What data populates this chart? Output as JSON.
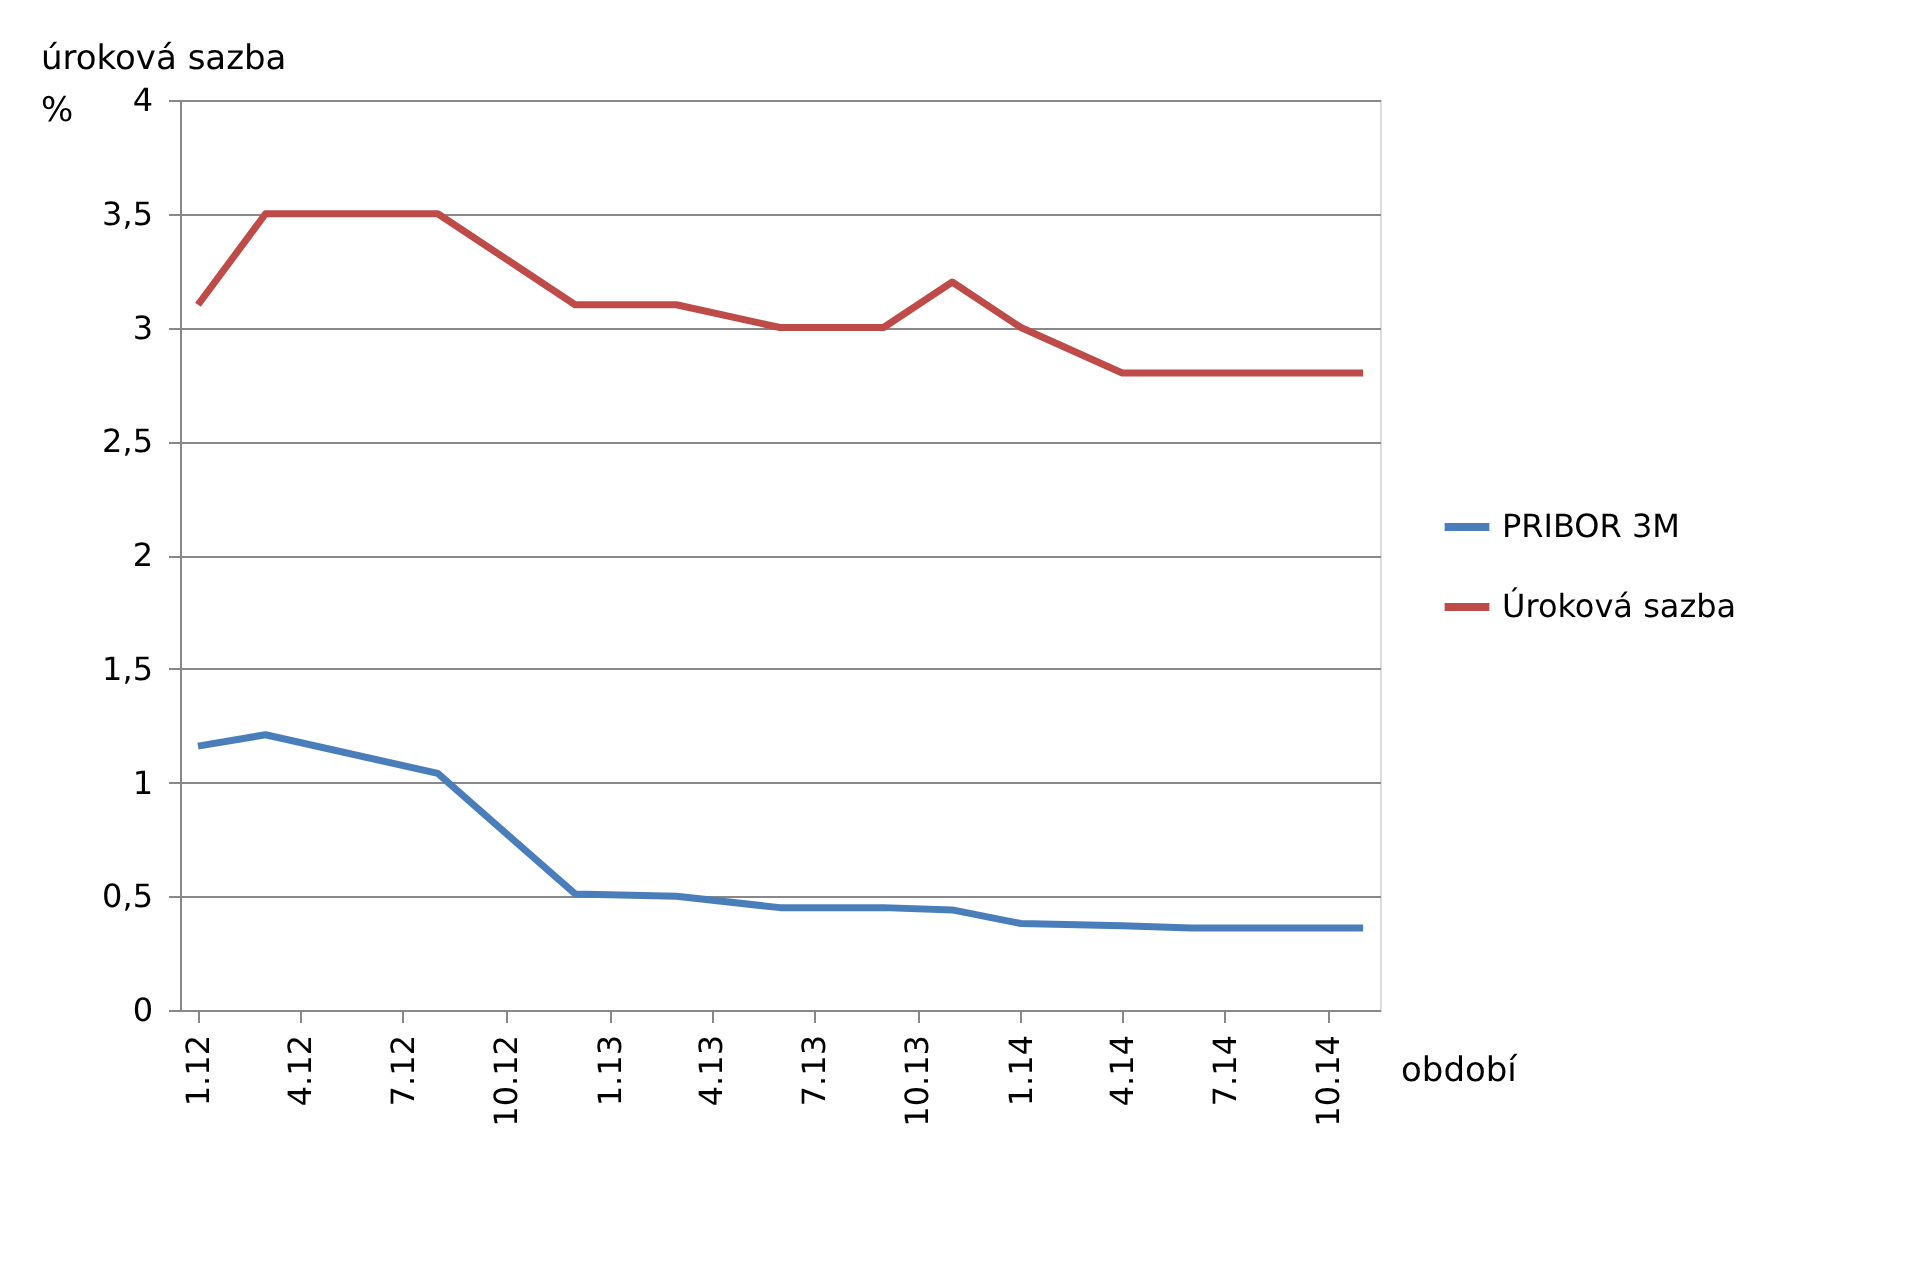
{
  "chart_data": {
    "type": "line",
    "ylabel": "úroková sazba\n%",
    "xlabel": "období",
    "series": [
      {
        "name": "PRIBOR 3M",
        "color": "#4a7ebb",
        "x": [
          "2012-01",
          "2012-03",
          "2012-08",
          "2012-12",
          "2013-03",
          "2013-06",
          "2013-09",
          "2013-11",
          "2014-01",
          "2014-04",
          "2014-06",
          "2014-11"
        ],
        "values": [
          1.16,
          1.21,
          1.04,
          0.51,
          0.5,
          0.45,
          0.45,
          0.44,
          0.38,
          0.37,
          0.36,
          0.36
        ]
      },
      {
        "name": "Úroková sazba",
        "color": "#be4b48",
        "x": [
          "2012-01",
          "2012-03",
          "2012-08",
          "2012-12",
          "2013-03",
          "2013-06",
          "2013-09",
          "2013-11",
          "2014-01",
          "2014-04",
          "2014-06",
          "2014-11"
        ],
        "values": [
          3.1,
          3.5,
          3.5,
          3.1,
          3.1,
          3.0,
          3.0,
          3.2,
          3.0,
          2.8,
          2.8,
          2.8
        ]
      }
    ],
    "xlim": [
      "2011-12-16",
      "2014-11-16"
    ],
    "xticks": [
      {
        "value": "2012-01",
        "label": "1.12"
      },
      {
        "value": "2012-04",
        "label": "4.12"
      },
      {
        "value": "2012-07",
        "label": "7.12"
      },
      {
        "value": "2012-10",
        "label": "10.12"
      },
      {
        "value": "2013-01",
        "label": "1.13"
      },
      {
        "value": "2013-04",
        "label": "4.13"
      },
      {
        "value": "2013-07",
        "label": "7.13"
      },
      {
        "value": "2013-10",
        "label": "10.13"
      },
      {
        "value": "2014-01",
        "label": "1.14"
      },
      {
        "value": "2014-04",
        "label": "4.14"
      },
      {
        "value": "2014-07",
        "label": "7.14"
      },
      {
        "value": "2014-10",
        "label": "10.14"
      }
    ],
    "ylim": [
      0,
      4
    ],
    "yticks": [
      {
        "value": 0,
        "label": "0"
      },
      {
        "value": 0.5,
        "label": "0,5"
      },
      {
        "value": 1,
        "label": "1"
      },
      {
        "value": 1.5,
        "label": "1,5"
      },
      {
        "value": 2,
        "label": "2"
      },
      {
        "value": 2.5,
        "label": "2,5"
      },
      {
        "value": 3,
        "label": "3"
      },
      {
        "value": 3.5,
        "label": "3,5"
      },
      {
        "value": 4,
        "label": "4"
      }
    ],
    "grid": "y",
    "legend": "right",
    "marker": "none",
    "line_style": "solid"
  }
}
